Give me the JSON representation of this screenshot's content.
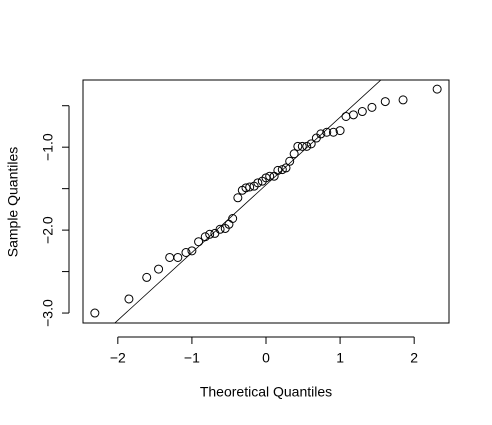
{
  "chart_data": {
    "type": "scatter",
    "x_label": "Theoretical Quantiles",
    "y_label": "Sample Quantiles",
    "x": [
      -2.31,
      -1.85,
      -1.61,
      -1.45,
      -1.3,
      -1.19,
      -1.08,
      -1.0,
      -0.91,
      -0.82,
      -0.76,
      -0.69,
      -0.62,
      -0.55,
      -0.5,
      -0.45,
      -0.38,
      -0.32,
      -0.27,
      -0.22,
      -0.16,
      -0.11,
      -0.05,
      0.0,
      0.05,
      0.11,
      0.16,
      0.22,
      0.27,
      0.32,
      0.38,
      0.43,
      0.49,
      0.55,
      0.61,
      0.68,
      0.74,
      0.82,
      0.91,
      1.0,
      1.08,
      1.18,
      1.3,
      1.43,
      1.61,
      1.85,
      2.31
    ],
    "values": [
      -3.0,
      -2.83,
      -2.57,
      -2.47,
      -2.33,
      -2.33,
      -2.27,
      -2.25,
      -2.14,
      -2.08,
      -2.05,
      -2.04,
      -1.99,
      -1.98,
      -1.93,
      -1.86,
      -1.61,
      -1.52,
      -1.49,
      -1.48,
      -1.47,
      -1.43,
      -1.41,
      -1.37,
      -1.35,
      -1.35,
      -1.28,
      -1.27,
      -1.25,
      -1.17,
      -1.08,
      -0.99,
      -0.99,
      -0.99,
      -0.96,
      -0.89,
      -0.84,
      -0.82,
      -0.82,
      -0.8,
      -0.63,
      -0.61,
      -0.57,
      -0.52,
      -0.45,
      -0.43,
      -0.3
    ],
    "color": "#000000",
    "reference_line": {
      "intercept": -1.455,
      "slope": 0.816
    },
    "xlim": [
      -2.47,
      2.47
    ],
    "ylim": [
      -3.12,
      -0.19
    ],
    "xticks": [
      {
        "value": -2,
        "label": "−2"
      },
      {
        "value": -1,
        "label": "−1"
      },
      0,
      1,
      2
    ],
    "yticks": [
      {
        "value": -3.0,
        "label": "−3.0"
      },
      {
        "value": -2.5,
        "label": null
      },
      {
        "value": -2.0,
        "label": "−2.0"
      },
      {
        "value": -1.5,
        "label": null
      },
      {
        "value": -1.0,
        "label": "−1.0"
      },
      {
        "value": -0.5,
        "label": null
      }
    ],
    "grid": false
  }
}
